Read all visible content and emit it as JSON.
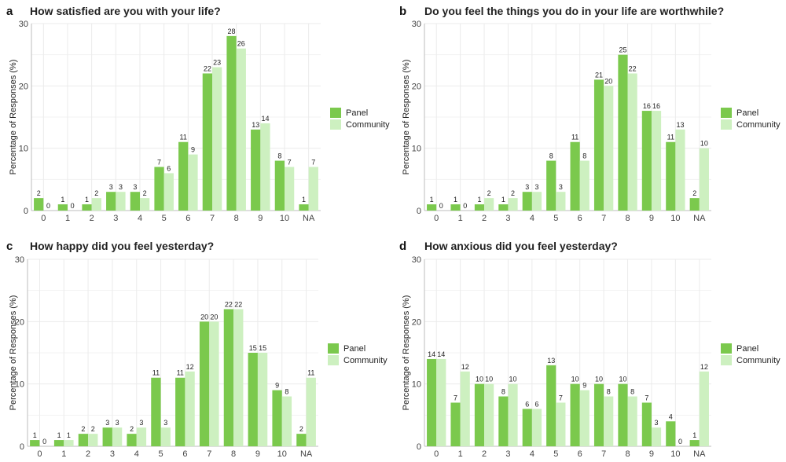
{
  "colors": {
    "panel": "#7bc94d",
    "community": "#cdf0c0",
    "grid": "#ebebeb",
    "axis": "#bdbdbd"
  },
  "chart_data": [
    {
      "type": "bar",
      "letter": "a",
      "title": "How satisfied are you with your life?",
      "ylabel": "Percentage of Responses (%)",
      "xlabel": "",
      "ylim": [
        0,
        30
      ],
      "yticks": [
        "0",
        "10",
        "20",
        "30"
      ],
      "grid": true,
      "legend": "right",
      "categories": [
        "0",
        "1",
        "2",
        "3",
        "4",
        "5",
        "6",
        "7",
        "8",
        "9",
        "10",
        "NA"
      ],
      "series": [
        {
          "name": "Panel",
          "values": [
            2,
            1,
            1,
            3,
            3,
            7,
            11,
            22,
            28,
            13,
            8,
            1
          ]
        },
        {
          "name": "Community",
          "values": [
            0,
            0,
            2,
            3,
            2,
            6,
            9,
            23,
            26,
            14,
            7,
            7
          ]
        }
      ]
    },
    {
      "type": "bar",
      "letter": "b",
      "title": "Do you feel the things you do in your life are worthwhile?",
      "ylabel": "Percentage of Responses (%)",
      "xlabel": "",
      "ylim": [
        0,
        30
      ],
      "yticks": [
        "0",
        "10",
        "20",
        "30"
      ],
      "grid": true,
      "legend": "right",
      "categories": [
        "0",
        "1",
        "2",
        "3",
        "4",
        "5",
        "6",
        "7",
        "8",
        "9",
        "10",
        "NA"
      ],
      "series": [
        {
          "name": "Panel",
          "values": [
            1,
            1,
            1,
            1,
            3,
            8,
            11,
            21,
            25,
            16,
            11,
            2
          ]
        },
        {
          "name": "Community",
          "values": [
            0,
            0,
            2,
            2,
            3,
            3,
            8,
            20,
            22,
            16,
            13,
            10
          ]
        }
      ]
    },
    {
      "type": "bar",
      "letter": "c",
      "title": "How happy did you feel yesterday?",
      "ylabel": "Percentage of Responses (%)",
      "xlabel": "",
      "ylim": [
        0,
        30
      ],
      "yticks": [
        "0",
        "10",
        "20",
        "30"
      ],
      "grid": true,
      "legend": "right",
      "categories": [
        "0",
        "1",
        "2",
        "3",
        "4",
        "5",
        "6",
        "7",
        "8",
        "9",
        "10",
        "NA"
      ],
      "series": [
        {
          "name": "Panel",
          "values": [
            1,
            1,
            2,
            3,
            2,
            11,
            11,
            20,
            22,
            15,
            9,
            2
          ]
        },
        {
          "name": "Community",
          "values": [
            0,
            1,
            2,
            3,
            3,
            3,
            12,
            20,
            22,
            15,
            8,
            11
          ]
        }
      ]
    },
    {
      "type": "bar",
      "letter": "d",
      "title": "How anxious did you feel yesterday?",
      "ylabel": "Percentage of Responses (%)",
      "xlabel": "",
      "ylim": [
        0,
        30
      ],
      "yticks": [
        "0",
        "10",
        "20",
        "30"
      ],
      "grid": true,
      "legend": "right",
      "categories": [
        "0",
        "1",
        "2",
        "3",
        "4",
        "5",
        "6",
        "7",
        "8",
        "9",
        "10",
        "NA"
      ],
      "series": [
        {
          "name": "Panel",
          "values": [
            14,
            7,
            10,
            8,
            6,
            13,
            10,
            10,
            10,
            7,
            4,
            1
          ]
        },
        {
          "name": "Community",
          "values": [
            14,
            12,
            10,
            10,
            6,
            7,
            9,
            8,
            8,
            3,
            0,
            12
          ]
        }
      ]
    }
  ]
}
